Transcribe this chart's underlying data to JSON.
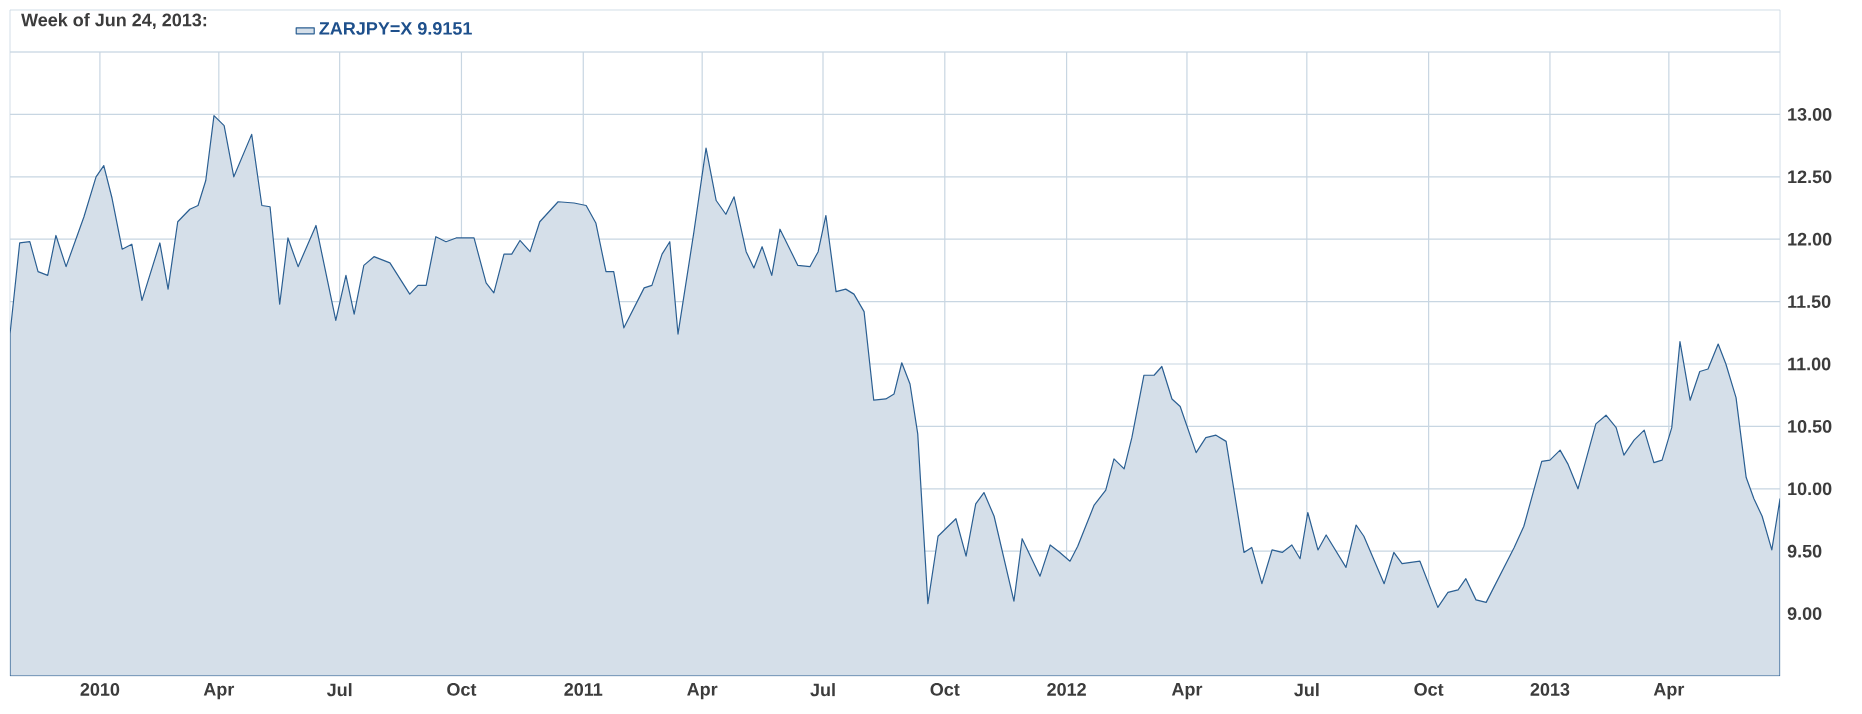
{
  "chart_data": {
    "type": "area",
    "title": "Week of Jun 24, 2013:",
    "legend": "top left",
    "grid": true,
    "marker": "none",
    "line_style": "solid",
    "xlim": [
      2009.814,
      2013.476
    ],
    "ylim": [
      8.5,
      13.5
    ],
    "xticks": [
      {
        "value": 2010,
        "label": "2010"
      },
      {
        "value": 2010.246,
        "label": "Apr"
      },
      {
        "value": 2010.496,
        "label": "Jul"
      },
      {
        "value": 2010.748,
        "label": "Oct"
      },
      {
        "value": 2011,
        "label": "2011"
      },
      {
        "value": 2011.246,
        "label": "Apr"
      },
      {
        "value": 2011.496,
        "label": "Jul"
      },
      {
        "value": 2011.748,
        "label": "Oct"
      },
      {
        "value": 2012,
        "label": "2012"
      },
      {
        "value": 2012.249,
        "label": "Apr"
      },
      {
        "value": 2012.497,
        "label": "Jul"
      },
      {
        "value": 2012.749,
        "label": "Oct"
      },
      {
        "value": 2013,
        "label": "2013"
      },
      {
        "value": 2013.246,
        "label": "Apr"
      }
    ],
    "yticks": [
      {
        "value": 9,
        "label": "9.00"
      },
      {
        "value": 9.5,
        "label": "9.50"
      },
      {
        "value": 10,
        "label": "10.00"
      },
      {
        "value": 10.5,
        "label": "10.50"
      },
      {
        "value": 11,
        "label": "11.00"
      },
      {
        "value": 11.5,
        "label": "11.50"
      },
      {
        "value": 12,
        "label": "12.00"
      },
      {
        "value": 12.5,
        "label": "12.50"
      },
      {
        "value": 13,
        "label": "13.00"
      }
    ],
    "series": [
      {
        "name": "ZARJPY=X 9.9151",
        "color": "#2b5f92",
        "x": [
          2009.814,
          2009.834,
          2009.855,
          2009.872,
          2009.892,
          2009.909,
          2009.93,
          2009.967,
          2009.992,
          2010.008,
          2010.025,
          2010.046,
          2010.066,
          2010.087,
          2010.124,
          2010.141,
          2010.161,
          2010.186,
          2010.203,
          2010.219,
          2010.236,
          2010.257,
          2010.277,
          2010.314,
          2010.335,
          2010.352,
          2010.372,
          2010.389,
          2010.41,
          2010.447,
          2010.488,
          2010.509,
          2010.526,
          2010.546,
          2010.567,
          2010.6,
          2010.641,
          2010.658,
          2010.675,
          2010.695,
          2010.716,
          2010.737,
          2010.774,
          2010.799,
          2010.815,
          2010.836,
          2010.852,
          2010.869,
          2010.89,
          2010.91,
          2010.948,
          2010.981,
          2011.006,
          2011.026,
          2011.047,
          2011.063,
          2011.084,
          2011.126,
          2011.142,
          2011.163,
          2011.179,
          2011.196,
          2011.229,
          2011.254,
          2011.275,
          2011.295,
          2011.312,
          2011.337,
          2011.353,
          2011.37,
          2011.39,
          2011.407,
          2011.444,
          2011.469,
          2011.486,
          2011.502,
          2011.523,
          2011.543,
          2011.56,
          2011.581,
          2011.601,
          2011.626,
          2011.643,
          2011.659,
          2011.676,
          2011.692,
          2011.713,
          2011.734,
          2011.755,
          2011.771,
          2011.792,
          2011.812,
          2011.829,
          2011.85,
          2011.891,
          2011.908,
          2011.945,
          2011.966,
          2011.986,
          2012.007,
          2012.023,
          2012.057,
          2012.081,
          2012.098,
          2012.119,
          2012.135,
          2012.16,
          2012.181,
          2012.197,
          2012.218,
          2012.235,
          2012.268,
          2012.288,
          2012.309,
          2012.33,
          2012.367,
          2012.383,
          2012.404,
          2012.425,
          2012.446,
          2012.466,
          2012.483,
          2012.499,
          2012.52,
          2012.537,
          2012.578,
          2012.599,
          2012.615,
          2012.657,
          2012.677,
          2012.694,
          2012.731,
          2012.768,
          2012.789,
          2012.81,
          2012.826,
          2012.847,
          2012.868,
          2012.926,
          2012.946,
          2012.983,
          2013.0,
          2013.021,
          2013.037,
          2013.058,
          2013.095,
          2013.116,
          2013.137,
          2013.153,
          2013.174,
          2013.195,
          2013.215,
          2013.232,
          2013.252,
          2013.269,
          2013.29,
          2013.31,
          2013.327,
          2013.348,
          2013.364,
          2013.385,
          2013.406,
          2013.422,
          2013.439,
          2013.459,
          2013.476
        ],
        "values": [
          11.24,
          11.97,
          11.98,
          11.74,
          11.71,
          12.03,
          11.78,
          12.18,
          12.5,
          12.59,
          12.33,
          11.92,
          11.96,
          11.51,
          11.97,
          11.6,
          12.14,
          12.24,
          12.27,
          12.47,
          12.99,
          12.91,
          12.5,
          12.84,
          12.27,
          12.26,
          11.48,
          12.01,
          11.78,
          12.11,
          11.35,
          11.71,
          11.4,
          11.79,
          11.86,
          11.81,
          11.56,
          11.63,
          11.63,
          12.02,
          11.98,
          12.01,
          12.01,
          11.65,
          11.57,
          11.88,
          11.88,
          11.99,
          11.9,
          12.14,
          12.3,
          12.29,
          12.27,
          12.13,
          11.74,
          11.74,
          11.29,
          11.61,
          11.63,
          11.88,
          11.98,
          11.24,
          12.06,
          12.73,
          12.31,
          12.2,
          12.34,
          11.9,
          11.77,
          11.94,
          11.71,
          12.08,
          11.79,
          11.78,
          11.9,
          12.19,
          11.58,
          11.6,
          11.56,
          11.42,
          10.71,
          10.72,
          10.76,
          11.01,
          10.84,
          10.44,
          9.08,
          9.62,
          9.7,
          9.76,
          9.46,
          9.88,
          9.97,
          9.78,
          9.1,
          9.6,
          9.3,
          9.55,
          9.49,
          9.42,
          9.54,
          9.87,
          9.99,
          10.24,
          10.16,
          10.41,
          10.91,
          10.91,
          10.98,
          10.72,
          10.66,
          10.29,
          10.41,
          10.43,
          10.38,
          9.49,
          9.53,
          9.24,
          9.51,
          9.49,
          9.55,
          9.44,
          9.81,
          9.51,
          9.63,
          9.37,
          9.71,
          9.62,
          9.24,
          9.49,
          9.4,
          9.42,
          9.05,
          9.17,
          9.19,
          9.28,
          9.11,
          9.09,
          9.53,
          9.7,
          10.22,
          10.23,
          10.31,
          10.2,
          10.0,
          10.52,
          10.59,
          10.49,
          10.27,
          10.39,
          10.47,
          10.21,
          10.23,
          10.49,
          11.18,
          10.71,
          10.94,
          10.96,
          11.16,
          11.0,
          10.73,
          10.09,
          9.92,
          9.78,
          9.51,
          9.92
        ]
      }
    ]
  }
}
